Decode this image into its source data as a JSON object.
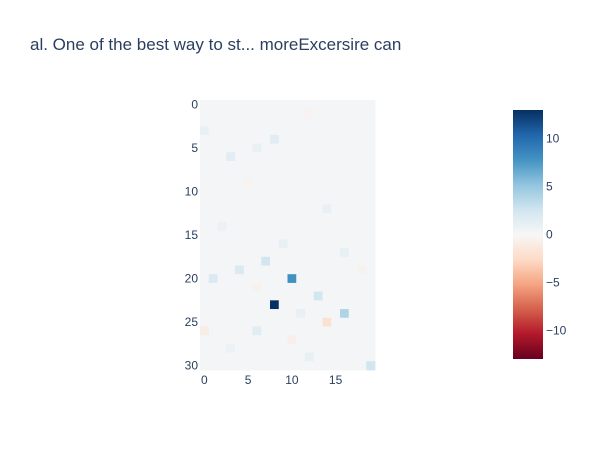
{
  "chart_data": {
    "type": "heatmap",
    "title": "al. One of the best way to st... moreExcersire can",
    "x_ticks": [
      "0",
      "5",
      "10",
      "15"
    ],
    "x_tick_values": [
      0,
      5,
      10,
      15
    ],
    "y_ticks": [
      "0",
      "5",
      "10",
      "15",
      "20",
      "25",
      "30"
    ],
    "y_tick_values": [
      0,
      5,
      10,
      15,
      20,
      25,
      30
    ],
    "xlim": [
      -0.5,
      19.5
    ],
    "ylim": [
      -0.5,
      30.5
    ],
    "y_reversed": true,
    "rows": 31,
    "cols": 20,
    "colorscale": "RdBu",
    "zmin": -13,
    "zmax": 13,
    "colorbar_ticks": [
      "10",
      "5",
      "0",
      "−5",
      "−10"
    ],
    "colorbar_tick_values": [
      10,
      5,
      0,
      -5,
      -10
    ],
    "baseline_value": 0.3,
    "highlighted_cells": [
      {
        "row": 3,
        "col": 0,
        "value": 1.0
      },
      {
        "row": 4,
        "col": 8,
        "value": 1.5
      },
      {
        "row": 5,
        "col": 6,
        "value": 1.0
      },
      {
        "row": 6,
        "col": 3,
        "value": 1.5
      },
      {
        "row": 12,
        "col": 14,
        "value": 1.0
      },
      {
        "row": 16,
        "col": 9,
        "value": 1.0
      },
      {
        "row": 17,
        "col": 16,
        "value": 1.0
      },
      {
        "row": 18,
        "col": 7,
        "value": 2.5
      },
      {
        "row": 19,
        "col": 4,
        "value": 2.0
      },
      {
        "row": 19,
        "col": 18,
        "value": -0.5
      },
      {
        "row": 20,
        "col": 10,
        "value": 8.0
      },
      {
        "row": 20,
        "col": 1,
        "value": 2.0
      },
      {
        "row": 21,
        "col": 6,
        "value": -0.5
      },
      {
        "row": 22,
        "col": 13,
        "value": 2.5
      },
      {
        "row": 23,
        "col": 8,
        "value": 13.0
      },
      {
        "row": 24,
        "col": 16,
        "value": 4.0
      },
      {
        "row": 24,
        "col": 11,
        "value": 1.0
      },
      {
        "row": 25,
        "col": 14,
        "value": -2.0
      },
      {
        "row": 26,
        "col": 6,
        "value": 1.5
      },
      {
        "row": 26,
        "col": 0,
        "value": -1.0
      },
      {
        "row": 27,
        "col": 10,
        "value": -0.7
      },
      {
        "row": 28,
        "col": 3,
        "value": 0.8
      },
      {
        "row": 29,
        "col": 12,
        "value": 1.0
      },
      {
        "row": 30,
        "col": 19,
        "value": 2.5
      },
      {
        "row": 1,
        "col": 12,
        "value": -0.4
      },
      {
        "row": 9,
        "col": 5,
        "value": -0.4
      },
      {
        "row": 14,
        "col": 2,
        "value": 0.8
      }
    ]
  }
}
